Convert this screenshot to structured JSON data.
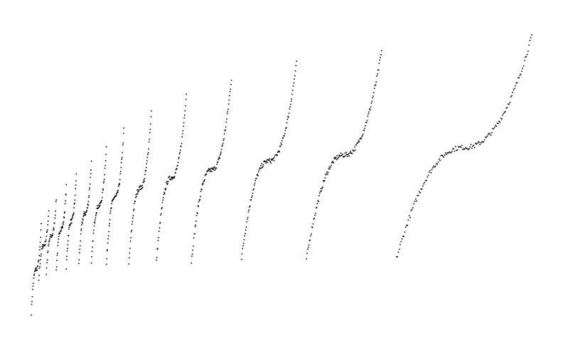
{
  "chart_data": {
    "type": "scatter",
    "title": "",
    "xlabel": "",
    "ylabel": "",
    "axes_visible": false,
    "grid": false,
    "legend": "none",
    "marker_color": "#000000",
    "description_of_data": "",
    "xlim": [
      0,
      100
    ],
    "ylim": [
      0,
      100
    ],
    "clusters": [
      {
        "x_start": 0.0,
        "x_end": 2.0,
        "y_bottom": 3.0,
        "y_top": 32.0,
        "points": 30
      },
      {
        "x_start": 1.5,
        "x_end": 3.5,
        "y_bottom": 14.0,
        "y_top": 37.0,
        "points": 30
      },
      {
        "x_start": 3.0,
        "x_end": 5.0,
        "y_bottom": 16.0,
        "y_top": 41.0,
        "points": 30
      },
      {
        "x_start": 5.0,
        "x_end": 7.0,
        "y_bottom": 17.0,
        "y_top": 45.0,
        "points": 34
      },
      {
        "x_start": 7.0,
        "x_end": 9.0,
        "y_bottom": 18.0,
        "y_top": 49.0,
        "points": 36
      },
      {
        "x_start": 9.5,
        "x_end": 12.0,
        "y_bottom": 19.0,
        "y_top": 53.0,
        "points": 40
      },
      {
        "x_start": 12.0,
        "x_end": 15.0,
        "y_bottom": 19.0,
        "y_top": 58.0,
        "points": 44
      },
      {
        "x_start": 15.0,
        "x_end": 18.5,
        "y_bottom": 19.0,
        "y_top": 64.0,
        "points": 50
      },
      {
        "x_start": 19.5,
        "x_end": 24.0,
        "y_bottom": 19.0,
        "y_top": 70.0,
        "points": 58
      },
      {
        "x_start": 25.0,
        "x_end": 31.0,
        "y_bottom": 20.0,
        "y_top": 76.0,
        "points": 70
      },
      {
        "x_start": 32.0,
        "x_end": 40.0,
        "y_bottom": 20.0,
        "y_top": 81.0,
        "points": 86
      },
      {
        "x_start": 42.0,
        "x_end": 53.0,
        "y_bottom": 21.0,
        "y_top": 86.0,
        "points": 104
      },
      {
        "x_start": 55.0,
        "x_end": 70.0,
        "y_bottom": 21.0,
        "y_top": 90.0,
        "points": 126
      },
      {
        "x_start": 73.0,
        "x_end": 100.0,
        "y_bottom": 21.0,
        "y_top": 95.0,
        "points": 150
      }
    ]
  }
}
